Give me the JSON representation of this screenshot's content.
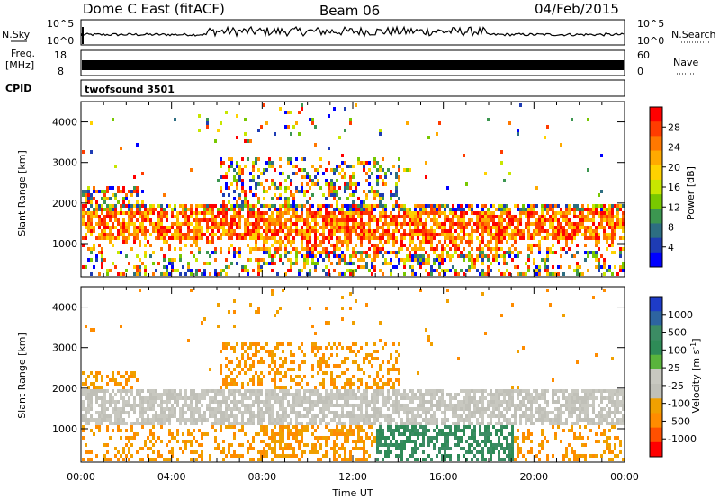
{
  "header": {
    "station": "Dome C East (fitACF)",
    "beam": "Beam 06",
    "date": "04/Feb/2015"
  },
  "strips": {
    "nsky_label": "N.Sky",
    "nsearch_label": "N.Search",
    "nsky_ticks": [
      "10^5",
      "10^0"
    ],
    "nsearch_ticks": [
      "10^5",
      "10^0"
    ],
    "freq_label_1": "Freq.",
    "freq_label_2": "[MHz]",
    "freq_ticks": [
      "18",
      "8"
    ],
    "nave_label": "Nave",
    "nave_ticks": [
      "60",
      "0"
    ],
    "cpid_label": "CPID",
    "cpid_value": "twofsound 3501"
  },
  "chart_data": [
    {
      "type": "heatmap",
      "name": "power",
      "ylabel": "Slant Range [km]",
      "xlabel": "",
      "xlim": [
        0,
        24
      ],
      "ylim": [
        180,
        4500
      ],
      "y_ticks": [
        1000,
        2000,
        3000,
        4000
      ],
      "x_ticks": [
        "00:00",
        "04:00",
        "08:00",
        "12:00",
        "16:00",
        "20:00",
        "00:00"
      ],
      "colorbar": {
        "label": "Power [dB]",
        "ticks": [
          "28",
          "24",
          "20",
          "16",
          "12",
          "8",
          "4"
        ],
        "colors": [
          "#ff0000",
          "#ff3c00",
          "#ff7800",
          "#ffaa00",
          "#ffd200",
          "#c8e600",
          "#78c800",
          "#3c9650",
          "#2d6e82",
          "#1e3cb4",
          "#0000ff"
        ]
      }
    },
    {
      "type": "heatmap",
      "name": "velocity",
      "ylabel": "Slant Range [km]",
      "xlabel": "Time UT",
      "xlim": [
        0,
        24
      ],
      "ylim": [
        180,
        4500
      ],
      "y_ticks": [
        1000,
        2000,
        3000,
        4000
      ],
      "x_ticks": [
        "00:00",
        "04:00",
        "08:00",
        "12:00",
        "16:00",
        "20:00",
        "00:00"
      ],
      "colorbar": {
        "label": "Velocity [m s",
        "label_sup": "-1",
        "label_end": "]",
        "ticks": [
          "1000",
          "500",
          "100",
          "25",
          "-25",
          "-100",
          "-500",
          "-1000"
        ],
        "colors": [
          "#1e3cc8",
          "#2d64a0",
          "#3c8c64",
          "#2e8b57",
          "#5ab43c",
          "#c8c8c0",
          "#c0c0b8",
          "#f0a000",
          "#ff8c00",
          "#ff5000",
          "#ff0000"
        ]
      }
    }
  ]
}
